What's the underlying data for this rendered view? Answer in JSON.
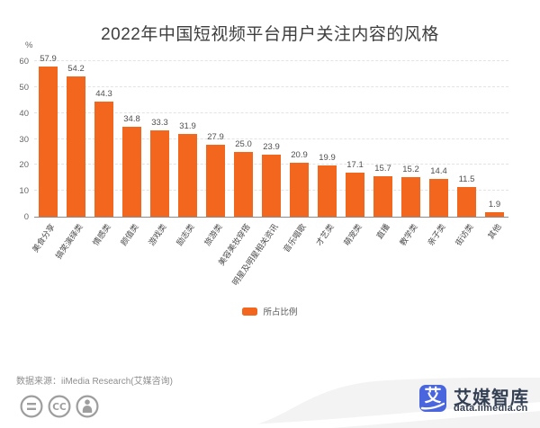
{
  "chart_data": {
    "type": "bar",
    "title": "2022年中国短视频平台用户关注内容的风格",
    "unit": "%",
    "categories": [
      "美食分享",
      "搞笑演绎类",
      "情感类",
      "颜值类",
      "游戏类",
      "励志类",
      "旅游类",
      "美容美妆穿搭",
      "明星及明星相关资讯",
      "音乐唱歌",
      "才艺类",
      "萌宠类",
      "直播",
      "教学类",
      "亲子类",
      "街访类",
      "其他"
    ],
    "values": [
      57.9,
      54.2,
      44.3,
      34.8,
      33.3,
      31.9,
      27.9,
      25.0,
      23.9,
      20.9,
      19.9,
      17.1,
      15.7,
      15.2,
      14.4,
      11.5,
      1.9
    ],
    "ylim": [
      0,
      60
    ],
    "yticks": [
      0,
      10,
      20,
      30,
      40,
      50,
      60
    ],
    "grid": "dashed-horizontal",
    "legend": [
      "所占比例"
    ],
    "legend_position": "bottom-center",
    "bar_color": "#f2661d"
  },
  "footer": {
    "source": "数据来源：iiMedia Research(艾媒咨询)",
    "license_icons": [
      "equal-sign-icon",
      "creative-commons-icon",
      "attribution-person-icon"
    ]
  },
  "branding": {
    "logo_char": "艾",
    "name": "艾媒智库",
    "url": "data.iimedia.cn",
    "logo_color": "#4a66df",
    "text_color": "#333f52"
  },
  "colors": {
    "bar": "#f2661d",
    "title_text": "#3e3e3e",
    "axis_text": "#666666",
    "gridline": "#e3e3e4",
    "axis_line": "#8c8c8c",
    "footer_text": "#8e8e8e",
    "icon_gray": "#9e9e9e",
    "wave_gray": "#f3f3f4"
  }
}
